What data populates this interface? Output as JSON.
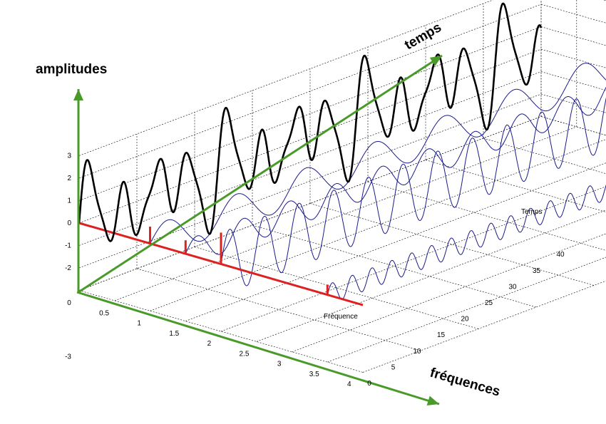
{
  "labels": {
    "amplitudes": "amplitudes",
    "temps": "temps",
    "frequences": "fréquences",
    "frequence_axis": "Fréquence",
    "temps_axis": "Temps"
  },
  "ticks": {
    "amplitude": [
      "3",
      "2",
      "1",
      "0",
      "-1",
      "-2",
      "-3"
    ],
    "frequency": [
      "0",
      "0.5",
      "1",
      "1.5",
      "2",
      "2.5",
      "3",
      "3.5",
      "4"
    ],
    "time": [
      "0",
      "5",
      "10",
      "15",
      "20",
      "25",
      "30",
      "35",
      "40"
    ]
  },
  "spectrum": {
    "frequencies": [
      1,
      1.5,
      2,
      3.5
    ],
    "amplitudes": [
      0.75,
      0.6,
      1.4,
      0.45
    ]
  },
  "colors": {
    "axis_arrows": "#4a9a2a",
    "spectrum": "#dd2020",
    "components": "#1a1a8c",
    "sum_signal": "#000000",
    "grid": "#000000"
  }
}
